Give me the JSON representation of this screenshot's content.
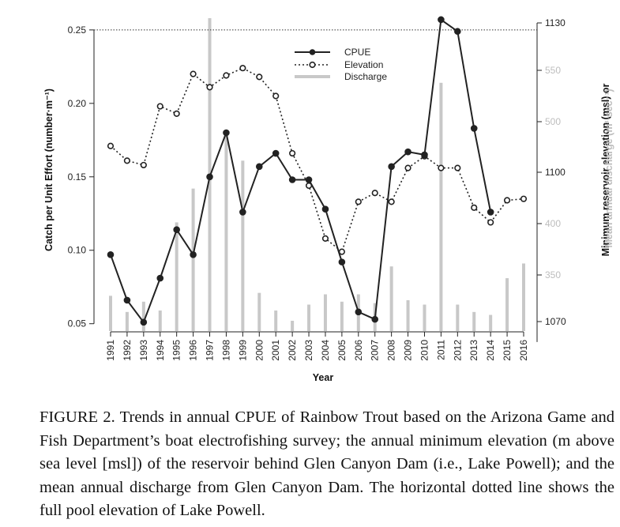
{
  "chart_data": {
    "type": "line",
    "x": [
      1991,
      1992,
      1993,
      1994,
      1995,
      1996,
      1997,
      1998,
      1999,
      2000,
      2001,
      2002,
      2003,
      2004,
      2005,
      2006,
      2007,
      2008,
      2009,
      2010,
      2011,
      2012,
      2013,
      2014,
      2015,
      2016
    ],
    "xlabel": "Year",
    "ylabel": "Catch per Unit Effort (number·m⁻¹)",
    "ylim": [
      0.045,
      0.258
    ],
    "yticks": [
      "0.05",
      "0.10",
      "0.15",
      "0.20",
      "0.25"
    ],
    "y2label": "Minimum reservoir elevation (msl) or",
    "y2ticks": [
      "1070",
      "1100",
      "1130"
    ],
    "y3label": "Mean annual discharge (m³·sec⁻¹)",
    "y3ticks": [
      "350",
      "400",
      "500",
      "550"
    ],
    "reference_line": 0.25,
    "legend_position": "top-center",
    "colors": {
      "cpue": "#222222",
      "elevation": "#222222",
      "discharge": "#c8c8c8",
      "discharge_label": "#bdbdbd"
    },
    "series": [
      {
        "key": "cpue",
        "name": "CPUE",
        "style": "solid-line-filled-markers",
        "values": [
          0.097,
          0.066,
          0.051,
          0.081,
          0.114,
          0.097,
          0.15,
          0.18,
          0.126,
          0.157,
          0.166,
          0.148,
          0.148,
          0.128,
          0.092,
          0.058,
          0.053,
          0.157,
          0.167,
          0.165,
          0.257,
          0.249,
          0.183,
          0.126,
          null,
          null
        ]
      },
      {
        "key": "elevation",
        "name": "Elevation",
        "style": "dotted-line-open-markers",
        "values": [
          0.171,
          0.161,
          0.158,
          0.198,
          0.193,
          0.22,
          0.211,
          0.219,
          0.224,
          0.218,
          0.205,
          0.166,
          0.144,
          0.108,
          0.099,
          0.133,
          0.139,
          0.133,
          0.156,
          0.164,
          0.156,
          0.156,
          0.129,
          0.119,
          0.134,
          0.135
        ]
      },
      {
        "key": "discharge",
        "name": "Discharge",
        "style": "bars",
        "values": [
          0.069,
          0.058,
          0.065,
          0.059,
          0.119,
          0.142,
          0.258,
          0.178,
          0.161,
          0.071,
          0.059,
          0.052,
          0.063,
          0.07,
          0.065,
          0.07,
          0.064,
          0.089,
          0.066,
          0.063,
          0.214,
          0.063,
          0.058,
          0.056,
          0.081,
          0.091
        ]
      }
    ]
  },
  "caption": "FIGURE 2. Trends in annual CPUE of Rainbow Trout based on the Arizona Game and Fish Department’s boat electrofishing survey; the annual minimum elevation (m above sea level [msl]) of the reservoir behind Glen Canyon Dam (i.e., Lake Powell); and the mean annual discharge from Glen Canyon Dam. The horizontal dotted line shows the full pool elevation of Lake Powell."
}
